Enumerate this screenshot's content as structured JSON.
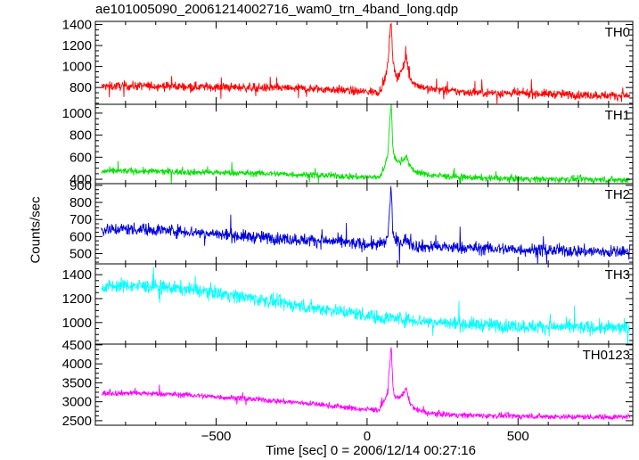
{
  "figure": {
    "title": "ae101005090_20061214002716_wam0_trn_4band_long.qdp",
    "ylabel": "Counts/sec",
    "xlabel": "Time [sec] 0 = 2006/12/14 00:27:16"
  },
  "chart_data": [
    {
      "type": "line",
      "panel_label": "TH0",
      "color": "#ff0000",
      "xlim": [
        -900,
        880
      ],
      "ylim": [
        640,
        1430
      ],
      "yticks": [
        800,
        1000,
        1200,
        1400
      ],
      "x_points": [
        -880,
        -800,
        -700,
        -600,
        -500,
        -400,
        -300,
        -200,
        -100,
        -20,
        40,
        60,
        70,
        75,
        80,
        85,
        90,
        100,
        110,
        120,
        130,
        140,
        160,
        200,
        300,
        400,
        500,
        600,
        700,
        800,
        870
      ],
      "y_mean": [
        810,
        815,
        815,
        810,
        805,
        800,
        795,
        790,
        780,
        760,
        760,
        880,
        1050,
        1300,
        1430,
        1100,
        950,
        900,
        950,
        980,
        1100,
        900,
        830,
        790,
        760,
        750,
        745,
        740,
        730,
        725,
        720
      ],
      "noise": 40
    },
    {
      "type": "line",
      "panel_label": "TH1",
      "color": "#00e000",
      "xlim": [
        -900,
        880
      ],
      "ylim": [
        360,
        1080
      ],
      "yticks": [
        400,
        600,
        800,
        1000
      ],
      "x_points": [
        -880,
        -800,
        -700,
        -600,
        -500,
        -400,
        -300,
        -200,
        -100,
        -20,
        40,
        60,
        70,
        75,
        80,
        85,
        90,
        100,
        110,
        120,
        130,
        140,
        160,
        200,
        300,
        400,
        500,
        600,
        700,
        800,
        870
      ],
      "y_mean": [
        470,
        475,
        470,
        465,
        460,
        455,
        450,
        440,
        430,
        420,
        420,
        520,
        650,
        950,
        1080,
        720,
        600,
        560,
        560,
        580,
        620,
        520,
        470,
        440,
        420,
        410,
        405,
        400,
        400,
        395,
        395
      ],
      "noise": 28
    },
    {
      "type": "line",
      "panel_label": "TH2",
      "color": "#0000dd",
      "xlim": [
        -900,
        880
      ],
      "ylim": [
        440,
        910
      ],
      "yticks": [
        500,
        600,
        700,
        800,
        900
      ],
      "x_points": [
        -880,
        -800,
        -700,
        -600,
        -500,
        -400,
        -300,
        -200,
        -100,
        -20,
        40,
        60,
        70,
        75,
        80,
        85,
        90,
        100,
        110,
        120,
        130,
        140,
        160,
        200,
        300,
        400,
        500,
        600,
        700,
        800,
        870
      ],
      "y_mean": [
        640,
        645,
        640,
        630,
        615,
        600,
        590,
        580,
        570,
        555,
        555,
        560,
        620,
        760,
        900,
        640,
        580,
        570,
        565,
        570,
        590,
        560,
        545,
        540,
        535,
        530,
        525,
        520,
        515,
        510,
        510
      ],
      "noise": 35
    },
    {
      "type": "line",
      "panel_label": "TH3",
      "color": "#00ffff",
      "xlim": [
        -900,
        880
      ],
      "ylim": [
        820,
        1490
      ],
      "yticks": [
        1000,
        1200,
        1400
      ],
      "x_points": [
        -880,
        -800,
        -700,
        -600,
        -500,
        -400,
        -300,
        -200,
        -100,
        -20,
        40,
        80,
        120,
        200,
        300,
        400,
        500,
        600,
        700,
        800,
        870
      ],
      "y_mean": [
        1300,
        1310,
        1300,
        1280,
        1250,
        1210,
        1170,
        1130,
        1100,
        1070,
        1040,
        1040,
        1030,
        1010,
        990,
        980,
        970,
        965,
        960,
        955,
        955
      ],
      "noise": 55
    },
    {
      "type": "line",
      "panel_label": "TH0123",
      "color": "#ff00ff",
      "xlim": [
        -900,
        880
      ],
      "ylim": [
        2380,
        4520
      ],
      "yticks": [
        2500,
        3000,
        3500,
        4000,
        4500
      ],
      "x_points": [
        -880,
        -800,
        -700,
        -600,
        -500,
        -400,
        -300,
        -200,
        -100,
        -20,
        40,
        60,
        70,
        75,
        80,
        85,
        90,
        100,
        110,
        120,
        130,
        140,
        160,
        200,
        300,
        400,
        500,
        600,
        700,
        800,
        870
      ],
      "y_mean": [
        3220,
        3230,
        3210,
        3180,
        3130,
        3080,
        3020,
        2960,
        2880,
        2800,
        2790,
        3050,
        3400,
        4000,
        4450,
        3500,
        3150,
        3100,
        3150,
        3200,
        3350,
        3000,
        2800,
        2700,
        2650,
        2630,
        2620,
        2610,
        2600,
        2600,
        2600
      ],
      "noise": 70
    }
  ],
  "x_axis": {
    "ticks": [
      -500,
      0,
      500
    ],
    "tick_labels": [
      "−500",
      "0",
      "500"
    ]
  }
}
